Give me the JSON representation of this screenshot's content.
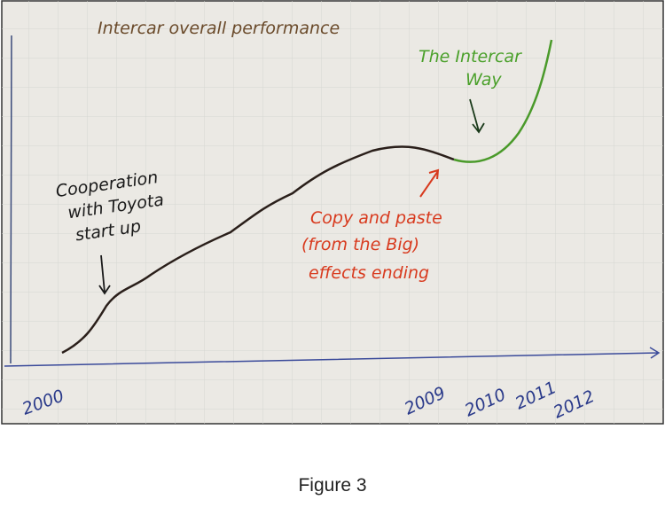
{
  "figure": {
    "title": "Intercar overall performance",
    "annotations": [
      {
        "lines": [
          "Cooperation",
          "with Toyota",
          "start up"
        ]
      },
      {
        "lines": [
          "Copy and paste",
          "(from the Big)",
          "effects ending"
        ]
      },
      {
        "lines": [
          "The Intercar",
          "Way"
        ]
      }
    ],
    "x_labels": [
      "2000",
      "2009",
      "2010",
      "2011",
      "2012"
    ],
    "caption": "Figure 3"
  }
}
